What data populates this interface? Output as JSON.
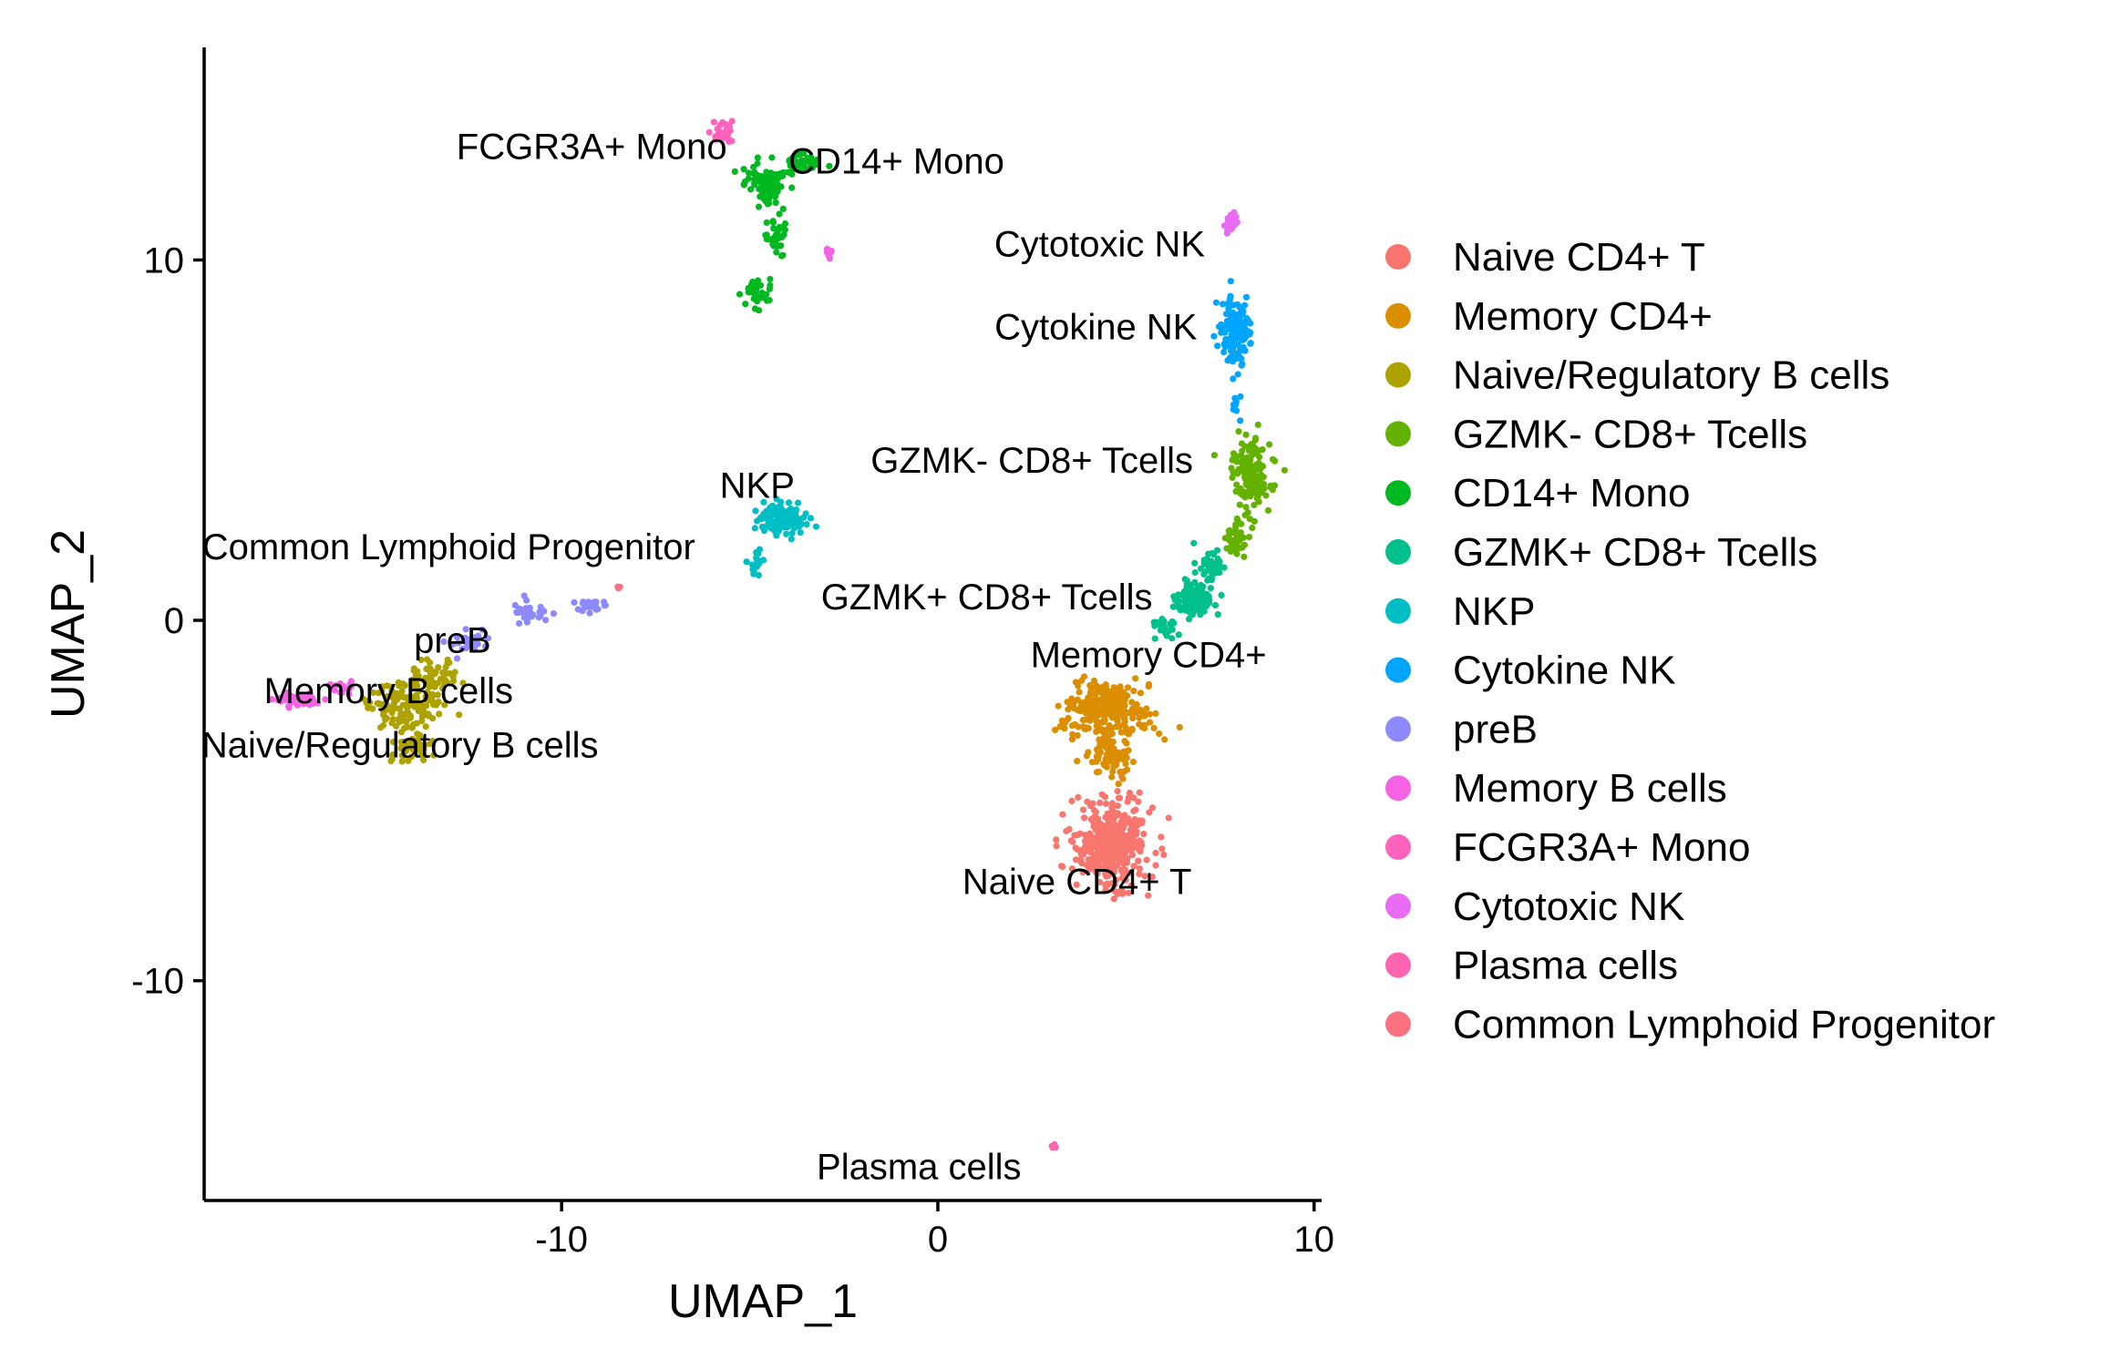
{
  "chart_data": {
    "type": "scatter",
    "xlabel": "UMAP_1",
    "ylabel": "UMAP_2",
    "xlim": [
      -19.5,
      10.2
    ],
    "ylim": [
      -16.1,
      15.9
    ],
    "x_ticks": [
      -10,
      0,
      10
    ],
    "y_ticks": [
      -10,
      0,
      10
    ],
    "grid": false,
    "legend_position": "right",
    "series": [
      {
        "name": "Naive CD4+ T",
        "color": "#F8766D",
        "clusters": [
          {
            "cx": 4.6,
            "cy": -6.2,
            "sx": 0.9,
            "sy": 1.05,
            "n": 420
          }
        ],
        "label": {
          "text": "Naive CD4+ T",
          "x": 3.7,
          "y": -7.6
        }
      },
      {
        "name": "Memory CD4+",
        "color": "#DB8E00",
        "clusters": [
          {
            "cx": 4.5,
            "cy": -2.5,
            "sx": 1.0,
            "sy": 0.7,
            "n": 260
          },
          {
            "cx": 4.6,
            "cy": -3.8,
            "sx": 0.5,
            "sy": 0.5,
            "n": 80
          }
        ],
        "label": {
          "text": "Memory CD4+",
          "x": 5.6,
          "y": -1.3
        }
      },
      {
        "name": "Naive/Regulatory B cells",
        "color": "#AEA200",
        "clusters": [
          {
            "cx": -14.2,
            "cy": -2.4,
            "sx": 0.9,
            "sy": 0.55,
            "n": 130
          },
          {
            "cx": -13.4,
            "cy": -1.6,
            "sx": 0.6,
            "sy": 0.5,
            "n": 60
          },
          {
            "cx": -14.0,
            "cy": -3.5,
            "sx": 0.5,
            "sy": 0.35,
            "n": 50
          }
        ],
        "label": {
          "text": "Naive/Regulatory B cells",
          "x": -14.3,
          "y": -3.8
        }
      },
      {
        "name": "GZMK- CD8+ Tcells",
        "color": "#64B200",
        "clusters": [
          {
            "cx": 8.3,
            "cy": 4.0,
            "sx": 0.45,
            "sy": 0.9,
            "n": 160
          },
          {
            "cx": 7.9,
            "cy": 2.3,
            "sx": 0.3,
            "sy": 0.5,
            "n": 40
          }
        ],
        "label": {
          "text": "GZMK- CD8+ Tcells",
          "x": 2.5,
          "y": 4.1
        }
      },
      {
        "name": "CD14+ Mono",
        "color": "#00B81F",
        "clusters": [
          {
            "cx": -4.6,
            "cy": 12.2,
            "sx": 0.5,
            "sy": 0.5,
            "n": 90
          },
          {
            "cx": -3.6,
            "cy": 12.7,
            "sx": 0.4,
            "sy": 0.3,
            "n": 40
          },
          {
            "cx": -4.8,
            "cy": 9.1,
            "sx": 0.3,
            "sy": 0.45,
            "n": 40
          },
          {
            "cx": -4.3,
            "cy": 10.6,
            "sx": 0.25,
            "sy": 0.5,
            "n": 35
          }
        ],
        "label": {
          "text": "CD14+ Mono",
          "x": -1.1,
          "y": 12.4
        }
      },
      {
        "name": "GZMK+ CD8+ Tcells",
        "color": "#00C08B",
        "clusters": [
          {
            "cx": 6.8,
            "cy": 0.6,
            "sx": 0.5,
            "sy": 0.5,
            "n": 110
          },
          {
            "cx": 7.2,
            "cy": 1.5,
            "sx": 0.35,
            "sy": 0.4,
            "n": 40
          },
          {
            "cx": 6.0,
            "cy": -0.2,
            "sx": 0.35,
            "sy": 0.3,
            "n": 25
          }
        ],
        "label": {
          "text": "GZMK+ CD8+ Tcells",
          "x": 1.3,
          "y": 0.3
        }
      },
      {
        "name": "NKP",
        "color": "#00BFC4",
        "clusters": [
          {
            "cx": -4.1,
            "cy": 2.8,
            "sx": 0.6,
            "sy": 0.4,
            "n": 120
          },
          {
            "cx": -4.8,
            "cy": 1.6,
            "sx": 0.25,
            "sy": 0.3,
            "n": 20
          }
        ],
        "label": {
          "text": "NKP",
          "x": -4.8,
          "y": 3.4
        }
      },
      {
        "name": "Cytokine NK",
        "color": "#00A5FF",
        "clusters": [
          {
            "cx": 7.9,
            "cy": 8.0,
            "sx": 0.35,
            "sy": 0.8,
            "n": 140
          },
          {
            "cx": 7.9,
            "cy": 5.8,
            "sx": 0.12,
            "sy": 0.4,
            "n": 10
          }
        ],
        "label": {
          "text": "Cytokine NK",
          "x": 4.2,
          "y": 7.8
        }
      },
      {
        "name": "preB",
        "color": "#8D8AFF",
        "clusters": [
          {
            "cx": -11.0,
            "cy": 0.2,
            "sx": 0.45,
            "sy": 0.3,
            "n": 40
          },
          {
            "cx": -9.3,
            "cy": 0.4,
            "sx": 0.6,
            "sy": 0.18,
            "n": 25
          },
          {
            "cx": -12.5,
            "cy": -0.6,
            "sx": 0.5,
            "sy": 0.3,
            "n": 30
          }
        ],
        "label": {
          "text": "preB",
          "x": -12.9,
          "y": -0.9
        }
      },
      {
        "name": "Memory B cells",
        "color": "#F563E3",
        "clusters": [
          {
            "cx": -17.0,
            "cy": -2.2,
            "sx": 0.6,
            "sy": 0.18,
            "n": 55
          },
          {
            "cx": -15.8,
            "cy": -1.9,
            "sx": 0.4,
            "sy": 0.2,
            "n": 15
          },
          {
            "cx": -2.9,
            "cy": 10.2,
            "sx": 0.15,
            "sy": 0.25,
            "n": 8
          }
        ],
        "label": {
          "text": "Memory B cells",
          "x": -14.6,
          "y": -2.3
        }
      },
      {
        "name": "FCGR3A+ Mono",
        "color": "#FF62BC",
        "clusters": [
          {
            "cx": -5.7,
            "cy": 13.6,
            "sx": 0.3,
            "sy": 0.35,
            "n": 30
          }
        ],
        "label": {
          "text": "FCGR3A+ Mono",
          "x": -9.2,
          "y": 12.8
        }
      },
      {
        "name": "Cytotoxic NK",
        "color": "#E76BF3",
        "clusters": [
          {
            "cx": 7.8,
            "cy": 11.0,
            "sx": 0.15,
            "sy": 0.25,
            "n": 25
          }
        ],
        "label": {
          "text": "Cytotoxic NK",
          "x": 4.3,
          "y": 10.1
        }
      },
      {
        "name": "Plasma cells",
        "color": "#FF64B0",
        "clusters": [
          {
            "cx": 3.1,
            "cy": -14.6,
            "sx": 0.1,
            "sy": 0.07,
            "n": 8
          }
        ],
        "label": {
          "text": "Plasma cells",
          "x": -0.5,
          "y": -15.5
        }
      },
      {
        "name": "Common Lymphoid Progenitor",
        "color": "#FC717F",
        "clusters": [
          {
            "cx": -8.5,
            "cy": 0.9,
            "sx": 0.06,
            "sy": 0.06,
            "n": 3
          }
        ],
        "label": {
          "text": "Common Lymphoid Progenitor",
          "x": -13.0,
          "y": 1.7
        }
      }
    ]
  }
}
